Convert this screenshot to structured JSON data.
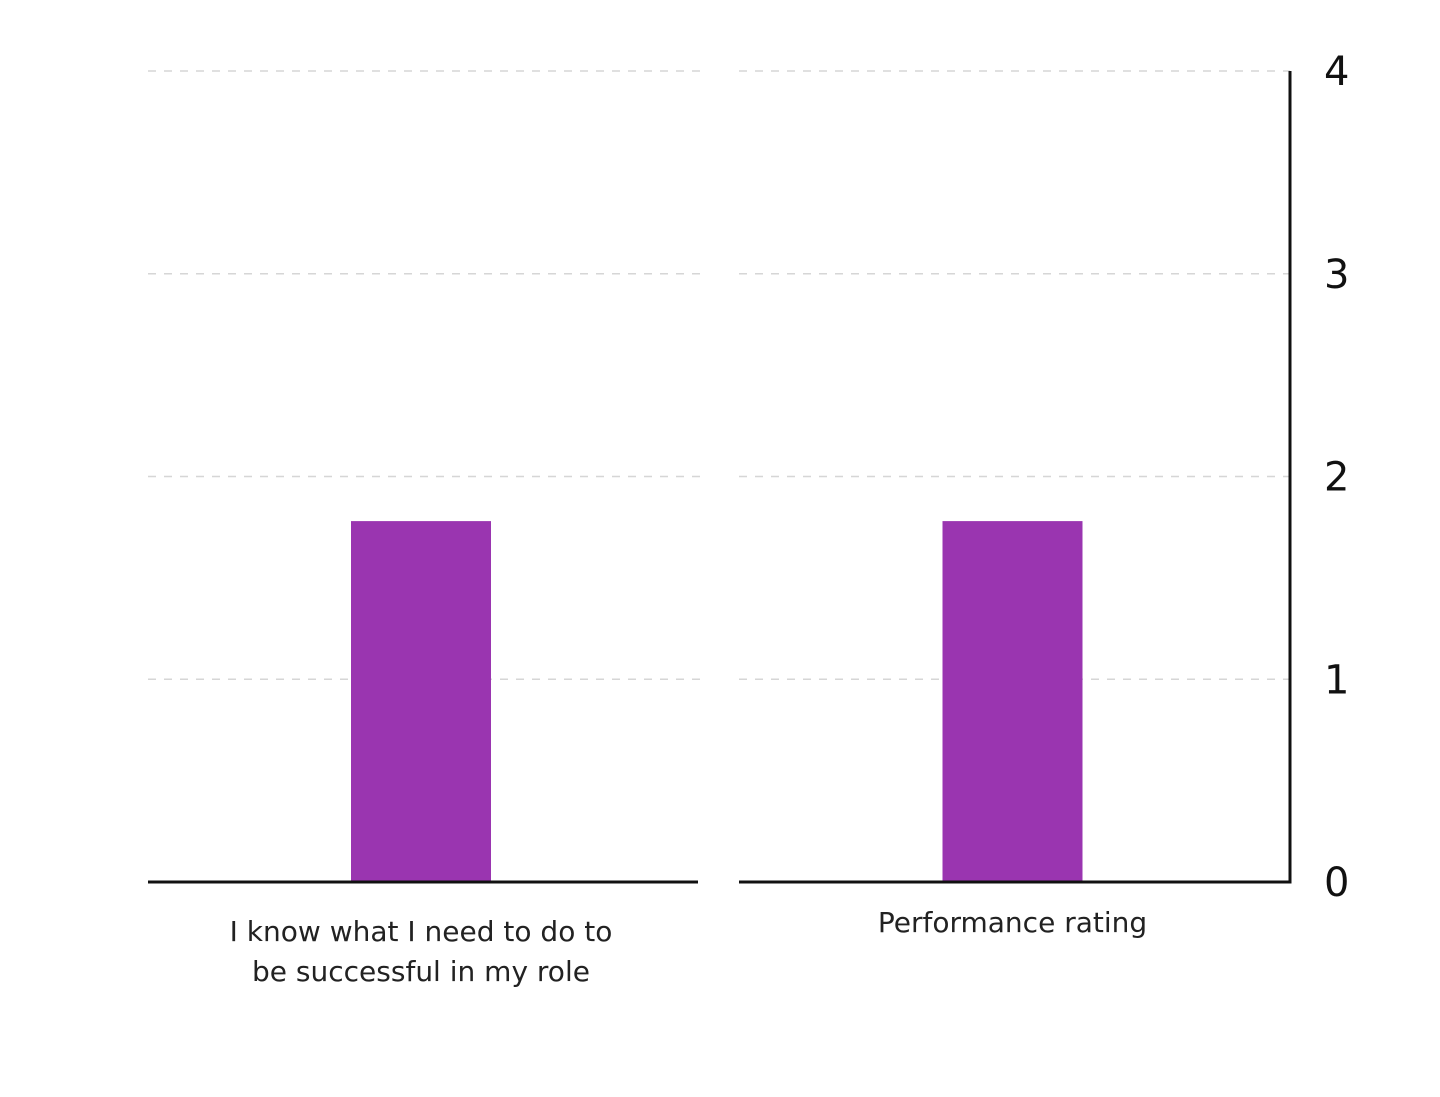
{
  "chart_data": {
    "type": "bar",
    "categories": [
      [
        "I know what I need to do to",
        "be successful in my role"
      ],
      [
        "Performance rating"
      ]
    ],
    "values": [
      1.78,
      1.78
    ],
    "y_ticks": [
      "0",
      "1",
      "2",
      "3",
      "4"
    ],
    "ylim": [
      0,
      4
    ],
    "y_axis_side": "right",
    "grid": true,
    "bar_color": "#9a35b0",
    "title": "",
    "xlabel": "",
    "ylabel": ""
  }
}
